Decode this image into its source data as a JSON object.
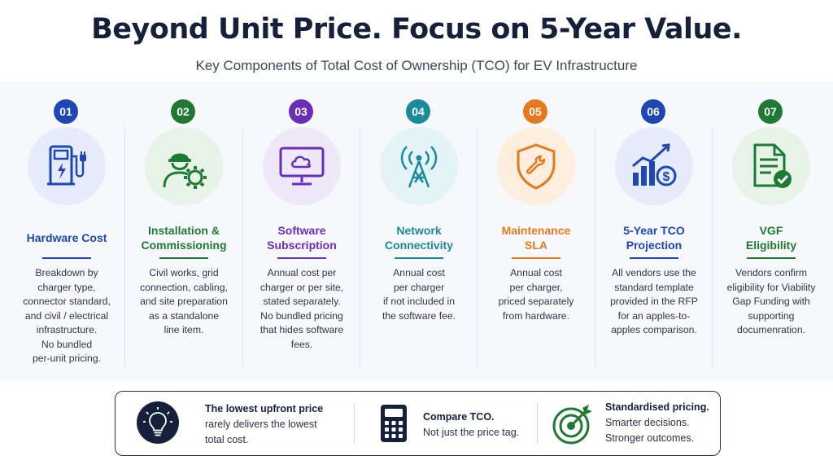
{
  "title": "Beyond Unit Price. Focus on 5-Year Value.",
  "subtitle": "Key Components of Total Cost of Ownership (TCO) for EV Infrastructure",
  "components": [
    {
      "num": "01",
      "title": "Hardware Cost",
      "color": "#1e46b4",
      "bg": "#e6ecfb",
      "icon": "ev-charger-icon",
      "desc": "Breakdown by\ncharger type,\nconnector standard,\nand civil / electrical\ninfrastructure.\nNo bundled\nper-unit pricing."
    },
    {
      "num": "02",
      "title": "Installation &\nCommissioning",
      "color": "#1e7a32",
      "bg": "#e6f3e6",
      "icon": "worker-gear-icon",
      "desc": "Civil works, grid\nconnection, cabling,\nand site preparation\nas a standalone\nline item."
    },
    {
      "num": "03",
      "title": "Software\nSubscription",
      "color": "#6a2fb8",
      "bg": "#efe8f9",
      "icon": "cloud-monitor-icon",
      "desc": "Annual cost per\ncharger or per site,\nstated separately.\nNo bundled pricing\nthat hides software\nfees."
    },
    {
      "num": "04",
      "title": "Network\nConnectivity",
      "color": "#1b8a9b",
      "bg": "#e3f3f6",
      "icon": "antenna-tower-icon",
      "desc": "Annual cost\nper charger\nif not included in\nthe software fee."
    },
    {
      "num": "05",
      "title": "Maintenance\nSLA",
      "color": "#e8781e",
      "bg": "#fdeedd",
      "icon": "wrench-shield-icon",
      "desc": "Annual cost\nper charger,\npriced separately\nfrom hardware."
    },
    {
      "num": "06",
      "title": "5-Year TCO\nProjection",
      "color": "#1e46b4",
      "bg": "#e6ecfb",
      "icon": "chart-dollar-icon",
      "desc": "All vendors use the\nstandard template\nprovided in the RFP\nfor an apples-to-\napples comparison."
    },
    {
      "num": "07",
      "title": "VGF\nEligibility",
      "color": "#1e7a32",
      "bg": "#e6f3e6",
      "icon": "document-check-icon",
      "desc": "Vendors confirm\neligibility for Viability\nGap Funding with\nsupporting\ndocumenration."
    }
  ],
  "bottom": {
    "left": {
      "strong": "The lowest upfront price",
      "rest": "rarely delivers the lowest\ntotal cost.",
      "icon": "lightbulb-icon"
    },
    "middle": {
      "strong": "Compare TCO.",
      "rest": "Not just the price tag.",
      "icon": "calculator-icon"
    },
    "right": {
      "strong": "Standardised pricing.",
      "rest": "Smarter decisions.\nStronger outcomes.",
      "icon": "target-icon"
    }
  },
  "colors": {
    "navy": "#15213b",
    "blue": "#1e46b4",
    "green": "#1e7a32",
    "purple": "#6a2fb8",
    "teal": "#1b8a9b",
    "orange": "#e8781e"
  }
}
